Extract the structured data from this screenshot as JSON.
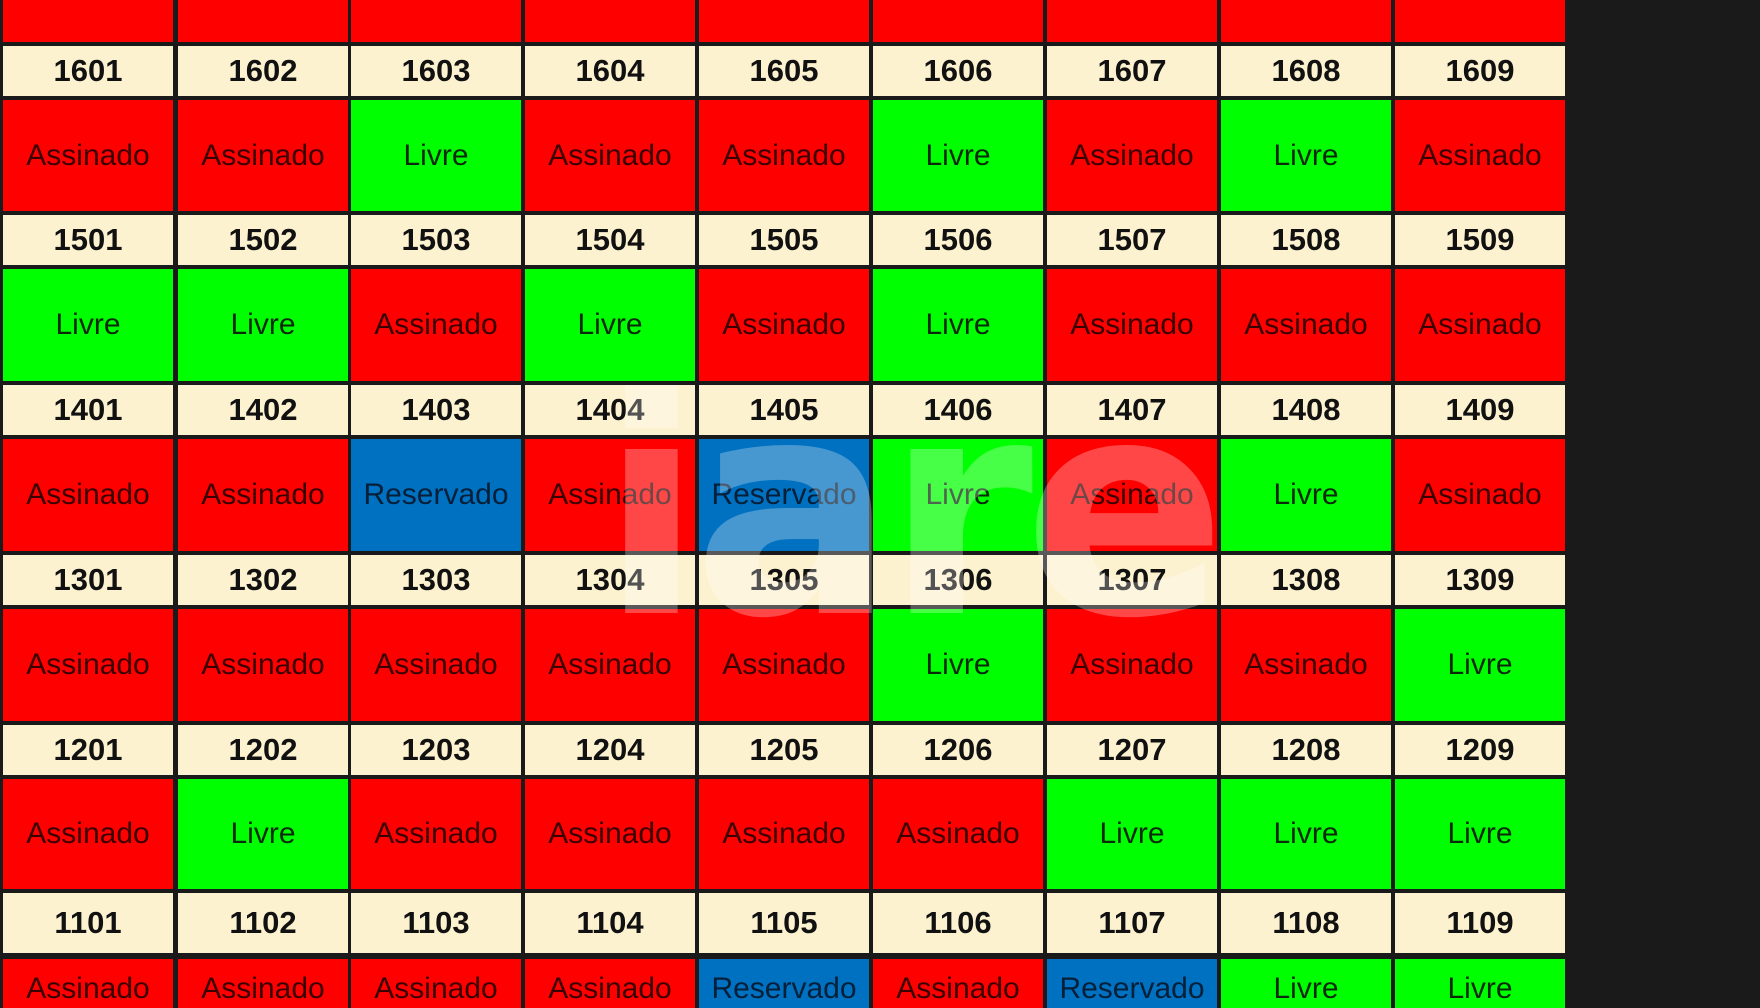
{
  "colors": {
    "assinado": "#ff0000",
    "livre": "#00ff00",
    "reservado": "#0070c0",
    "unit_background": "#fdf2d0"
  },
  "grid": {
    "top_strip": [
      "",
      "",
      "",
      "",
      "",
      "",
      "",
      "",
      ""
    ],
    "floors": [
      {
        "units": [
          "1601",
          "1602",
          "1603",
          "1604",
          "1605",
          "1606",
          "1607",
          "1608",
          "1609"
        ],
        "statuses": [
          "Assinado",
          "Assinado",
          "Livre",
          "Assinado",
          "Assinado",
          "Livre",
          "Assinado",
          "Livre",
          "Assinado"
        ]
      },
      {
        "units": [
          "1501",
          "1502",
          "1503",
          "1504",
          "1505",
          "1506",
          "1507",
          "1508",
          "1509"
        ],
        "statuses": [
          "Livre",
          "Livre",
          "Assinado",
          "Livre",
          "Assinado",
          "Livre",
          "Assinado",
          "Assinado",
          "Assinado"
        ]
      },
      {
        "units": [
          "1401",
          "1402",
          "1403",
          "1404",
          "1405",
          "1406",
          "1407",
          "1408",
          "1409"
        ],
        "statuses": [
          "Assinado",
          "Assinado",
          "Reservado",
          "Assinado",
          "Reservado",
          "Livre",
          "Assinado",
          "Livre",
          "Assinado"
        ]
      },
      {
        "units": [
          "1301",
          "1302",
          "1303",
          "1304",
          "1305",
          "1306",
          "1307",
          "1308",
          "1309"
        ],
        "statuses": [
          "Assinado",
          "Assinado",
          "Assinado",
          "Assinado",
          "Assinado",
          "Livre",
          "Assinado",
          "Assinado",
          "Livre"
        ]
      },
      {
        "units": [
          "1201",
          "1202",
          "1203",
          "1204",
          "1205",
          "1206",
          "1207",
          "1208",
          "1209"
        ],
        "statuses": [
          "Assinado",
          "Livre",
          "Assinado",
          "Assinado",
          "Assinado",
          "Assinado",
          "Livre",
          "Livre",
          "Livre"
        ]
      },
      {
        "units": [
          "1101",
          "1102",
          "1103",
          "1104",
          "1105",
          "1106",
          "1107",
          "1108",
          "1109"
        ],
        "statuses": [
          "Assinado",
          "Assinado",
          "Assinado",
          "Assinado",
          "Reservado",
          "Assinado",
          "Reservado",
          "Livre",
          "Livre"
        ]
      }
    ]
  },
  "watermark": {
    "icon": "watermark-logo"
  }
}
